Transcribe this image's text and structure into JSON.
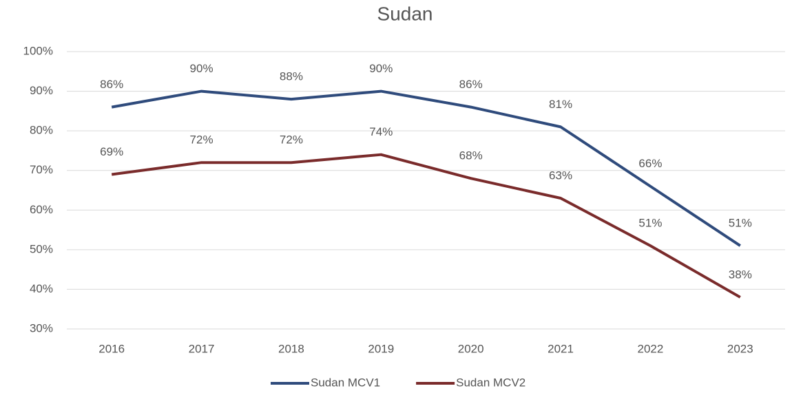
{
  "chart_data": {
    "type": "line",
    "title": "Sudan",
    "categories": [
      "2016",
      "2017",
      "2018",
      "2019",
      "2020",
      "2021",
      "2022",
      "2023"
    ],
    "series": [
      {
        "name": "Sudan MCV1",
        "color": "#2f4b7c",
        "values": [
          86,
          90,
          88,
          90,
          86,
          81,
          66,
          51
        ],
        "value_labels": [
          "86%",
          "90%",
          "88%",
          "90%",
          "86%",
          "81%",
          "66%",
          "51%"
        ]
      },
      {
        "name": "Sudan MCV2",
        "color": "#7a2b2b",
        "values": [
          69,
          72,
          72,
          74,
          68,
          63,
          51,
          38
        ],
        "value_labels": [
          "69%",
          "72%",
          "72%",
          "74%",
          "68%",
          "63%",
          "51%",
          "38%"
        ]
      }
    ],
    "ylim": [
      30,
      100
    ],
    "yticks": [
      {
        "value": 30,
        "label": "30%"
      },
      {
        "value": 40,
        "label": "40%"
      },
      {
        "value": 50,
        "label": "50%"
      },
      {
        "value": 60,
        "label": "60%"
      },
      {
        "value": 70,
        "label": "70%"
      },
      {
        "value": 80,
        "label": "80%"
      },
      {
        "value": 90,
        "label": "90%"
      },
      {
        "value": 100,
        "label": "100%"
      }
    ],
    "grid": true,
    "legend": "bottom"
  }
}
